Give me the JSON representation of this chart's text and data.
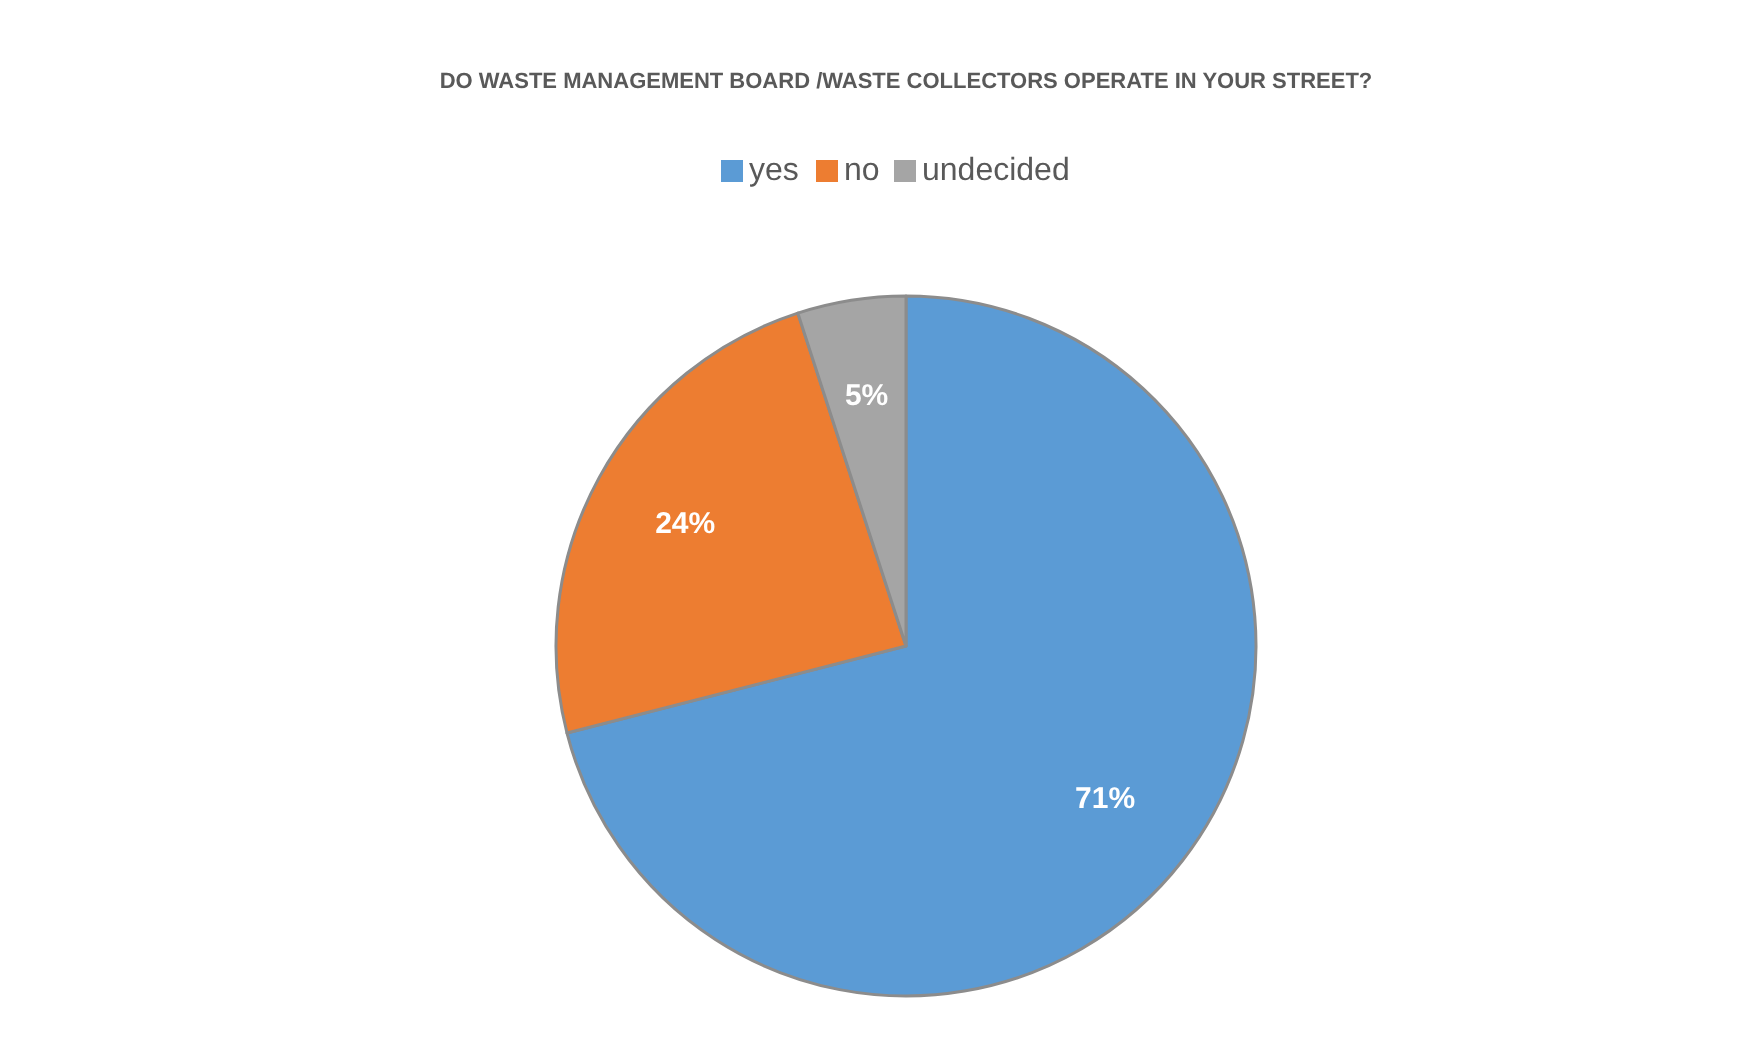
{
  "chart_data": {
    "type": "pie",
    "title": "DO WASTE MANAGEMENT BOARD /WASTE COLLECTORS OPERATE IN YOUR STREET?",
    "categories": [
      "yes",
      "no",
      "undecided"
    ],
    "values": [
      71,
      24,
      5
    ],
    "colors": [
      "#5b9bd5",
      "#ed7d31",
      "#a5a5a5"
    ],
    "value_labels": [
      "71%",
      "24%",
      "5%"
    ],
    "legend": "top"
  }
}
